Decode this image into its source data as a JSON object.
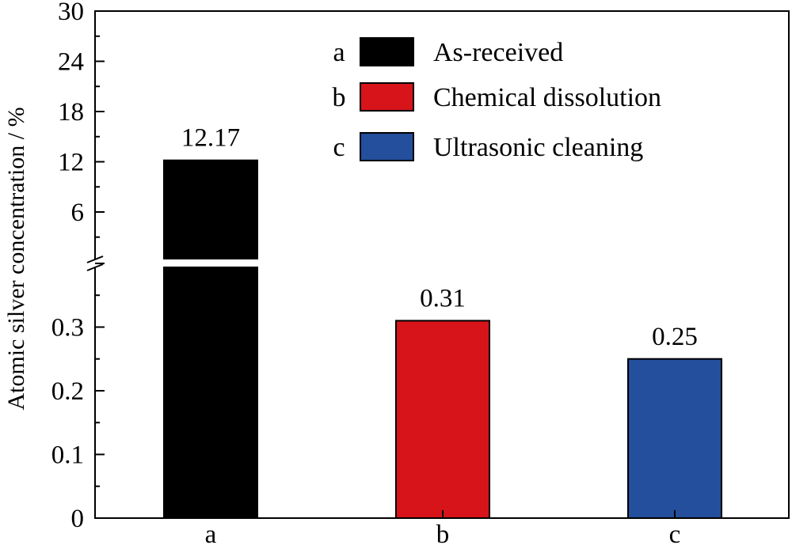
{
  "chart_data": {
    "type": "bar",
    "ylabel": "Atomic silver concentration / %",
    "categories": [
      "a",
      "b",
      "c"
    ],
    "values": [
      12.17,
      0.31,
      0.25
    ],
    "data_labels": [
      "12.17",
      "0.31",
      "0.25"
    ],
    "colors": [
      "#000000",
      "#d7141a",
      "#234f9c"
    ],
    "y_axis": {
      "broken": true,
      "lower_range": [
        0,
        0.4
      ],
      "lower_ticks": [
        "0",
        "0.1",
        "0.2",
        "0.3"
      ],
      "upper_range": [
        0,
        30
      ],
      "upper_ticks": [
        "6",
        "12",
        "18",
        "24",
        "30"
      ]
    },
    "legend": {
      "placement": "top-right",
      "entries": [
        {
          "key": "a",
          "label": "As-received",
          "color": "#000000"
        },
        {
          "key": "b",
          "label": "Chemical dissolution",
          "color": "#d7141a"
        },
        {
          "key": "c",
          "label": "Ultrasonic cleaning",
          "color": "#234f9c"
        }
      ]
    },
    "grid": false
  }
}
